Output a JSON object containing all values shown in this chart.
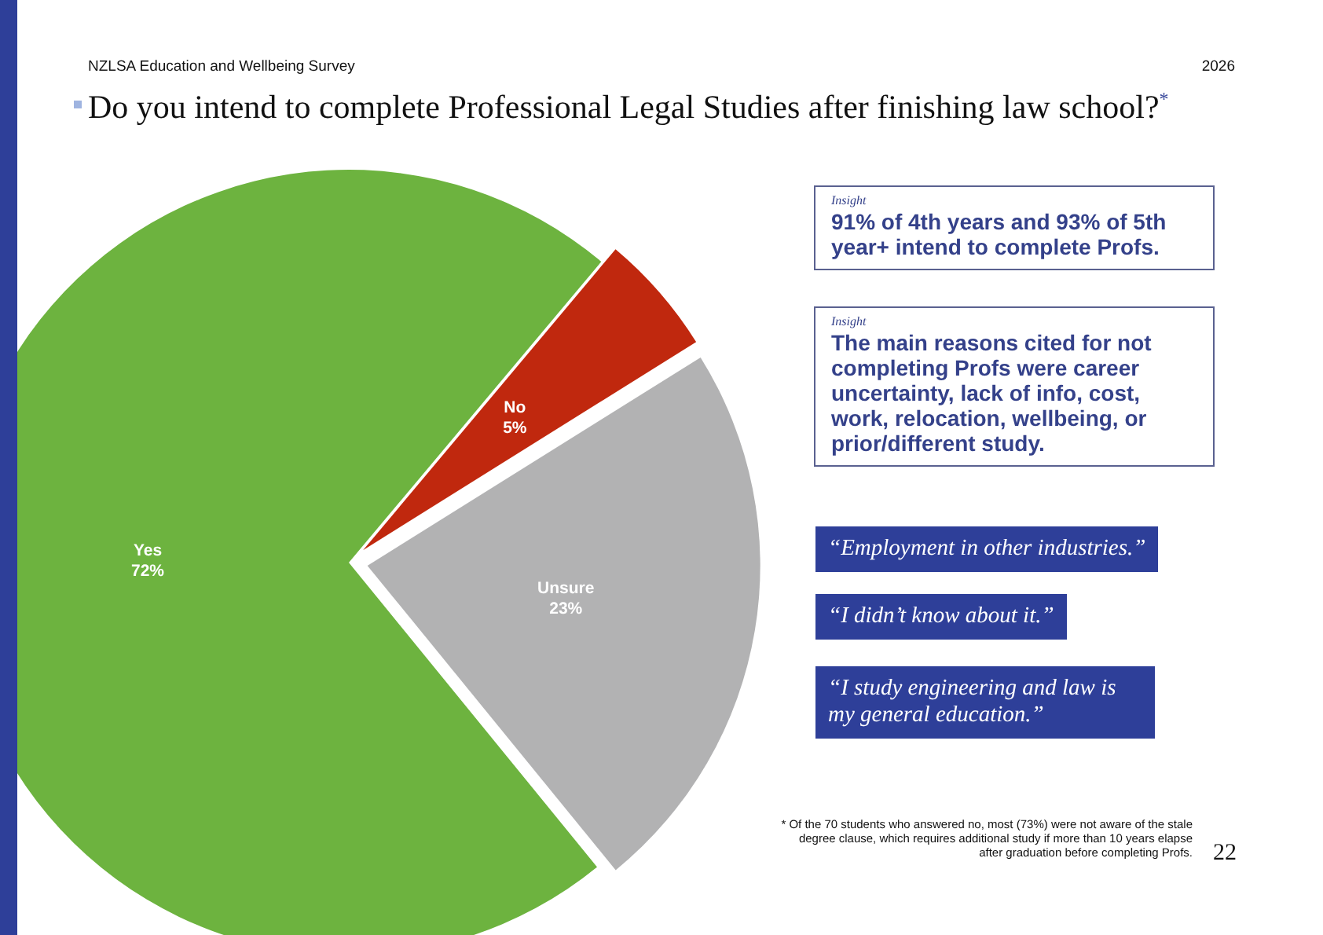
{
  "chart_data": {
    "type": "pie",
    "title": "Do you intend to complete Professional Legal Studies after finishing law school?$^{*}$",
    "subtitle": "NZLSA Education and Wellbeing Survey",
    "categories": [
      "Yes",
      "No",
      "Unsure"
    ],
    "values": [
      72,
      5,
      23
    ],
    "colors": [
      "#6db33f",
      "#c0280e",
      "#b2b2b3"
    ],
    "value_labels": [
      "72%",
      "5%",
      "23%"
    ],
    "legend": false,
    "annotations": [
      "2026",
      "Insight",
      "91% of 4th years and 93% of 5th year+ intend to complete Profs.",
      "Insight",
      "The main reasons cited for not completing Profs were career uncertainty, lack of info, cost, work, relocation, wellbeing, or prior/different study.",
      "“Employment in other industries.”",
      "“I didn’t know about it.”",
      "“I study engineering and law is my general education.”",
      "* Of the 70 students who answered no, most (73%) were not aware of the stale degree clause, which requires additional study if more than 10 years elapse after graduation before completing Profs.",
      "22"
    ]
  }
}
